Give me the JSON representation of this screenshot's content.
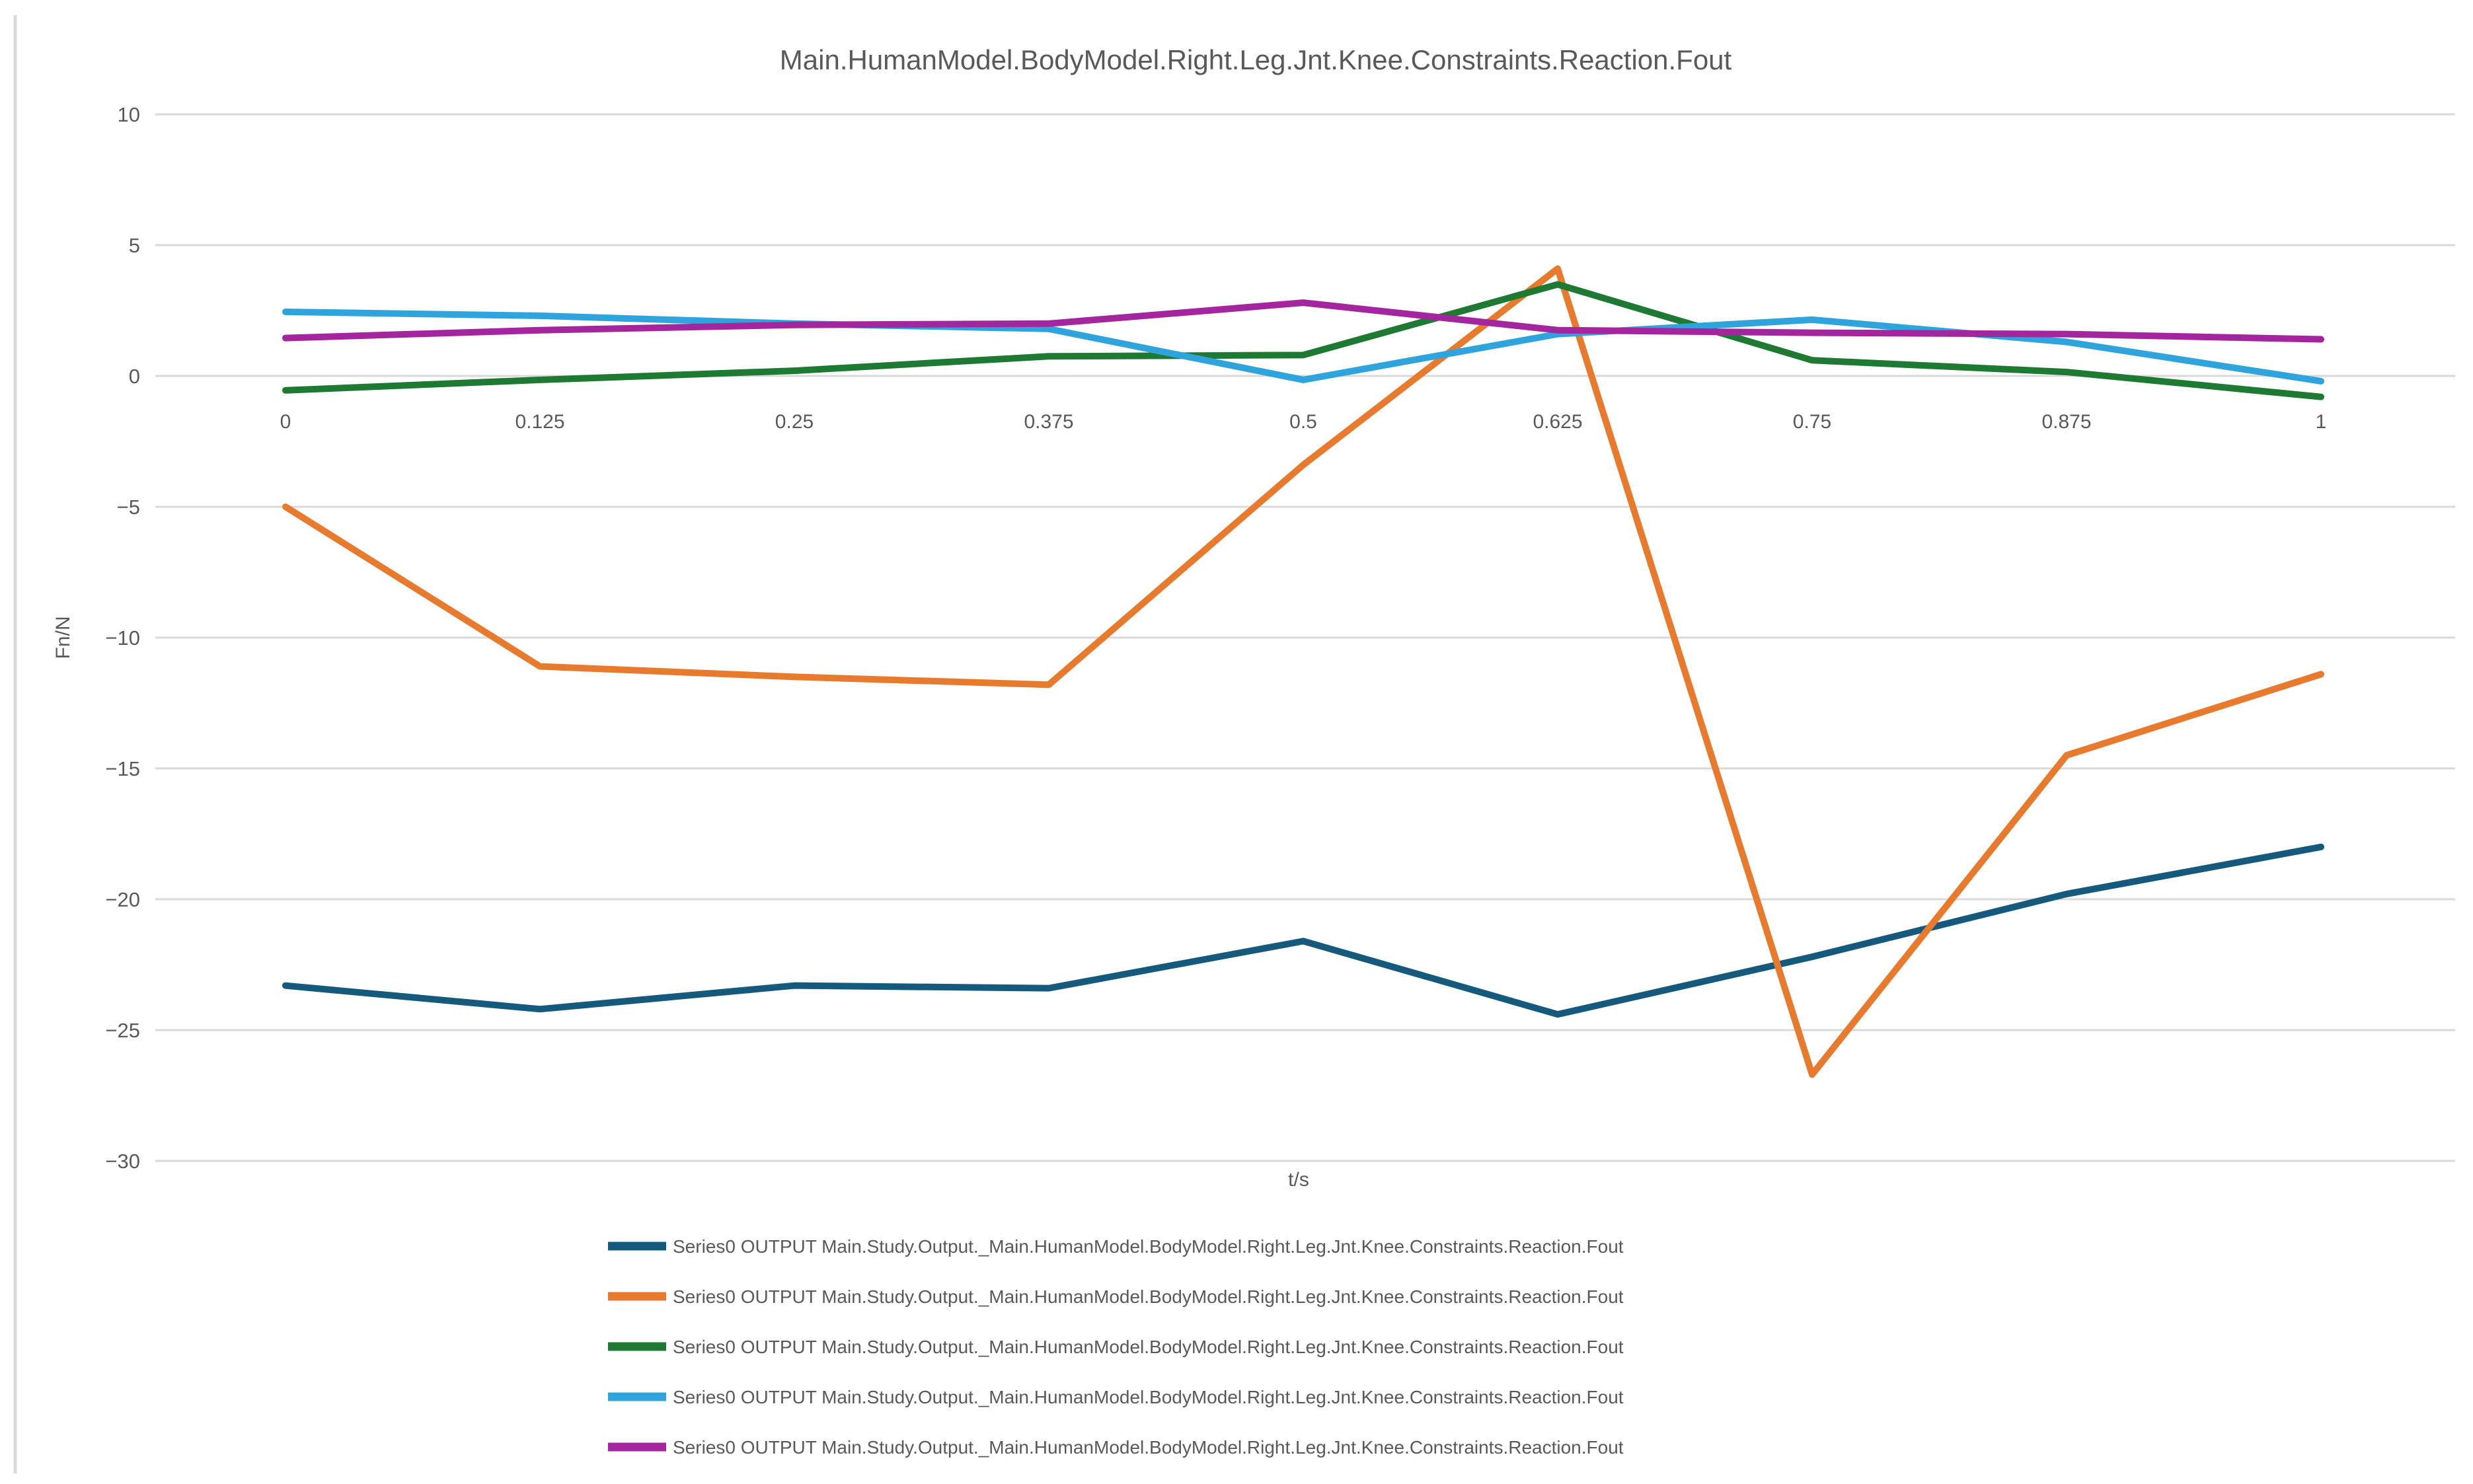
{
  "title": "Main.HumanModel.BodyModel.Right.Leg.Jnt.Knee.Constraints.Reaction.Fout",
  "colors": {
    "background": "#ffffff",
    "grid": "#d9d9d9",
    "frame_edge": "#d9d9d9",
    "text": "#595959"
  },
  "chart_data": {
    "type": "line",
    "x": [
      0,
      0.125,
      0.25,
      0.375,
      0.5,
      0.625,
      0.75,
      0.875,
      1
    ],
    "x_tick_labels": [
      "0",
      "0.125",
      "0.25",
      "0.375",
      "0.5",
      "0.625",
      "0.75",
      "0.875",
      "1"
    ],
    "y_ticks": [
      10,
      5,
      0,
      -5,
      -10,
      -15,
      -20,
      -25,
      -30
    ],
    "y_tick_labels": [
      "10",
      "5",
      "0",
      "−5",
      "−10",
      "−15",
      "−20",
      "−25",
      "−30"
    ],
    "xlim": [
      0,
      1
    ],
    "ylim": [
      -30,
      10
    ],
    "xlabel": "t/s",
    "ylabel": "Fn/N",
    "grid": true,
    "legend_position": "bottom-left",
    "series": [
      {
        "name": "Series0 OUTPUT Main.Study.Output._Main.HumanModel.BodyModel.Right.Leg.Jnt.Knee.Constraints.Reaction.Fout",
        "color": "#15597d",
        "values": [
          -23.3,
          -24.2,
          -23.3,
          -23.4,
          -21.6,
          -24.4,
          -22.2,
          -19.8,
          -18.0
        ]
      },
      {
        "name": "Series0 OUTPUT Main.Study.Output._Main.HumanModel.BodyModel.Right.Leg.Jnt.Knee.Constraints.Reaction.Fout",
        "color": "#e87a2e",
        "values": [
          -5.0,
          -11.1,
          -11.5,
          -11.8,
          -3.4,
          4.1,
          -26.7,
          -14.5,
          -11.4
        ]
      },
      {
        "name": "Series0 OUTPUT Main.Study.Output._Main.HumanModel.BodyModel.Right.Leg.Jnt.Knee.Constraints.Reaction.Fout",
        "color": "#1e7a33",
        "values": [
          -0.55,
          -0.15,
          0.2,
          0.75,
          0.8,
          3.5,
          0.6,
          0.15,
          -0.8
        ]
      },
      {
        "name": "Series0 OUTPUT Main.Study.Output._Main.HumanModel.BodyModel.Right.Leg.Jnt.Knee.Constraints.Reaction.Fout",
        "color": "#2fa3dc",
        "values": [
          2.45,
          2.3,
          2.0,
          1.8,
          -0.15,
          1.6,
          2.15,
          1.3,
          -0.2
        ]
      },
      {
        "name": "Series0 OUTPUT Main.Study.Output._Main.HumanModel.BodyModel.Right.Leg.Jnt.Knee.Constraints.Reaction.Fout",
        "color": "#a3269f",
        "values": [
          1.45,
          1.75,
          1.95,
          2.0,
          2.8,
          1.75,
          1.65,
          1.6,
          1.4
        ]
      }
    ]
  }
}
